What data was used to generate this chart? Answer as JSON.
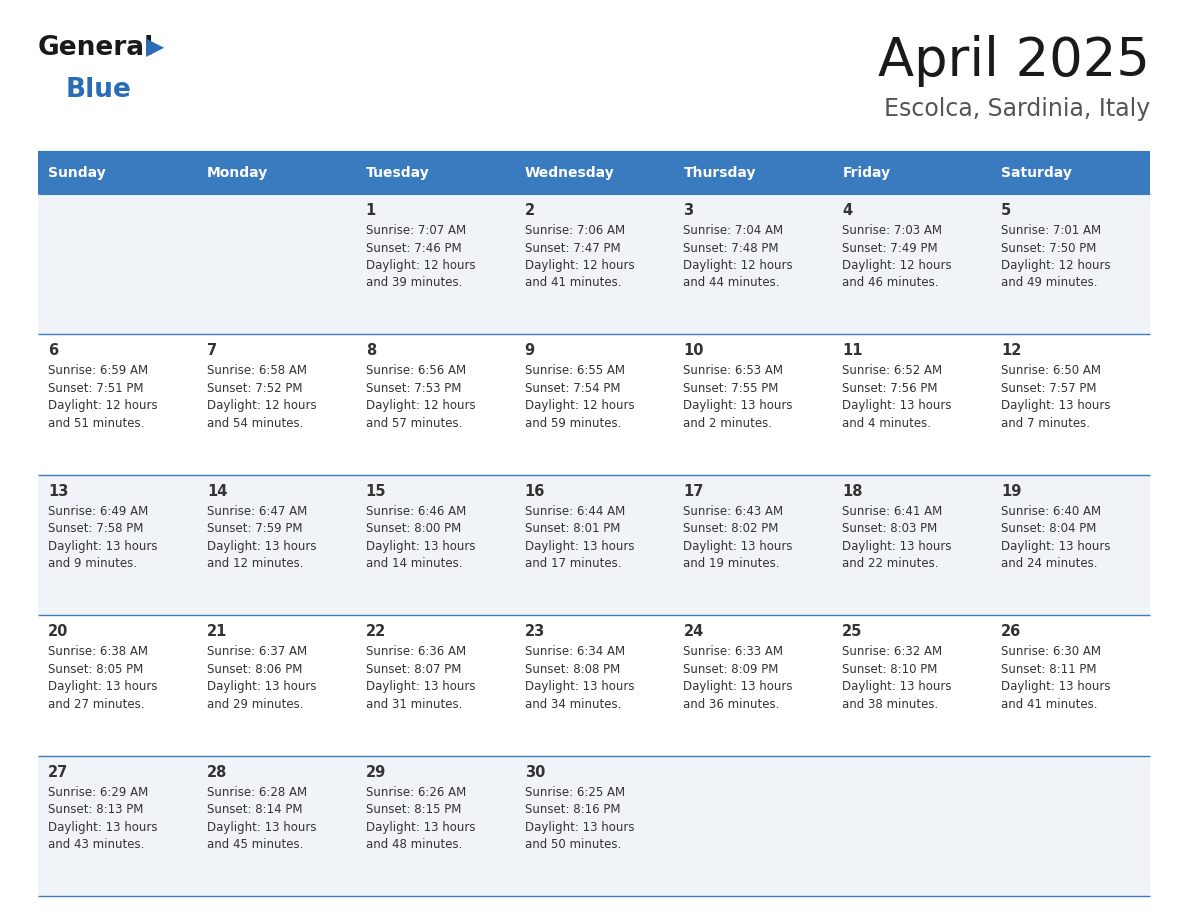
{
  "title": "April 2025",
  "subtitle": "Escolca, Sardinia, Italy",
  "header_bg": "#3a7abf",
  "header_text_color": "#ffffff",
  "cell_bg_light": "#f0f4f8",
  "cell_bg_white": "#ffffff",
  "border_color": "#3a7abf",
  "text_color": "#333333",
  "day_headers": [
    "Sunday",
    "Monday",
    "Tuesday",
    "Wednesday",
    "Thursday",
    "Friday",
    "Saturday"
  ],
  "weeks": [
    [
      {
        "day": "",
        "info": ""
      },
      {
        "day": "",
        "info": ""
      },
      {
        "day": "1",
        "info": "Sunrise: 7:07 AM\nSunset: 7:46 PM\nDaylight: 12 hours\nand 39 minutes."
      },
      {
        "day": "2",
        "info": "Sunrise: 7:06 AM\nSunset: 7:47 PM\nDaylight: 12 hours\nand 41 minutes."
      },
      {
        "day": "3",
        "info": "Sunrise: 7:04 AM\nSunset: 7:48 PM\nDaylight: 12 hours\nand 44 minutes."
      },
      {
        "day": "4",
        "info": "Sunrise: 7:03 AM\nSunset: 7:49 PM\nDaylight: 12 hours\nand 46 minutes."
      },
      {
        "day": "5",
        "info": "Sunrise: 7:01 AM\nSunset: 7:50 PM\nDaylight: 12 hours\nand 49 minutes."
      }
    ],
    [
      {
        "day": "6",
        "info": "Sunrise: 6:59 AM\nSunset: 7:51 PM\nDaylight: 12 hours\nand 51 minutes."
      },
      {
        "day": "7",
        "info": "Sunrise: 6:58 AM\nSunset: 7:52 PM\nDaylight: 12 hours\nand 54 minutes."
      },
      {
        "day": "8",
        "info": "Sunrise: 6:56 AM\nSunset: 7:53 PM\nDaylight: 12 hours\nand 57 minutes."
      },
      {
        "day": "9",
        "info": "Sunrise: 6:55 AM\nSunset: 7:54 PM\nDaylight: 12 hours\nand 59 minutes."
      },
      {
        "day": "10",
        "info": "Sunrise: 6:53 AM\nSunset: 7:55 PM\nDaylight: 13 hours\nand 2 minutes."
      },
      {
        "day": "11",
        "info": "Sunrise: 6:52 AM\nSunset: 7:56 PM\nDaylight: 13 hours\nand 4 minutes."
      },
      {
        "day": "12",
        "info": "Sunrise: 6:50 AM\nSunset: 7:57 PM\nDaylight: 13 hours\nand 7 minutes."
      }
    ],
    [
      {
        "day": "13",
        "info": "Sunrise: 6:49 AM\nSunset: 7:58 PM\nDaylight: 13 hours\nand 9 minutes."
      },
      {
        "day": "14",
        "info": "Sunrise: 6:47 AM\nSunset: 7:59 PM\nDaylight: 13 hours\nand 12 minutes."
      },
      {
        "day": "15",
        "info": "Sunrise: 6:46 AM\nSunset: 8:00 PM\nDaylight: 13 hours\nand 14 minutes."
      },
      {
        "day": "16",
        "info": "Sunrise: 6:44 AM\nSunset: 8:01 PM\nDaylight: 13 hours\nand 17 minutes."
      },
      {
        "day": "17",
        "info": "Sunrise: 6:43 AM\nSunset: 8:02 PM\nDaylight: 13 hours\nand 19 minutes."
      },
      {
        "day": "18",
        "info": "Sunrise: 6:41 AM\nSunset: 8:03 PM\nDaylight: 13 hours\nand 22 minutes."
      },
      {
        "day": "19",
        "info": "Sunrise: 6:40 AM\nSunset: 8:04 PM\nDaylight: 13 hours\nand 24 minutes."
      }
    ],
    [
      {
        "day": "20",
        "info": "Sunrise: 6:38 AM\nSunset: 8:05 PM\nDaylight: 13 hours\nand 27 minutes."
      },
      {
        "day": "21",
        "info": "Sunrise: 6:37 AM\nSunset: 8:06 PM\nDaylight: 13 hours\nand 29 minutes."
      },
      {
        "day": "22",
        "info": "Sunrise: 6:36 AM\nSunset: 8:07 PM\nDaylight: 13 hours\nand 31 minutes."
      },
      {
        "day": "23",
        "info": "Sunrise: 6:34 AM\nSunset: 8:08 PM\nDaylight: 13 hours\nand 34 minutes."
      },
      {
        "day": "24",
        "info": "Sunrise: 6:33 AM\nSunset: 8:09 PM\nDaylight: 13 hours\nand 36 minutes."
      },
      {
        "day": "25",
        "info": "Sunrise: 6:32 AM\nSunset: 8:10 PM\nDaylight: 13 hours\nand 38 minutes."
      },
      {
        "day": "26",
        "info": "Sunrise: 6:30 AM\nSunset: 8:11 PM\nDaylight: 13 hours\nand 41 minutes."
      }
    ],
    [
      {
        "day": "27",
        "info": "Sunrise: 6:29 AM\nSunset: 8:13 PM\nDaylight: 13 hours\nand 43 minutes."
      },
      {
        "day": "28",
        "info": "Sunrise: 6:28 AM\nSunset: 8:14 PM\nDaylight: 13 hours\nand 45 minutes."
      },
      {
        "day": "29",
        "info": "Sunrise: 6:26 AM\nSunset: 8:15 PM\nDaylight: 13 hours\nand 48 minutes."
      },
      {
        "day": "30",
        "info": "Sunrise: 6:25 AM\nSunset: 8:16 PM\nDaylight: 13 hours\nand 50 minutes."
      },
      {
        "day": "",
        "info": ""
      },
      {
        "day": "",
        "info": ""
      },
      {
        "day": "",
        "info": ""
      }
    ]
  ],
  "logo_general_color": "#1a1a1a",
  "logo_blue_color": "#2a6cb5",
  "logo_triangle_color": "#2a6cb5",
  "title_color": "#1a1a1a",
  "subtitle_color": "#555555"
}
